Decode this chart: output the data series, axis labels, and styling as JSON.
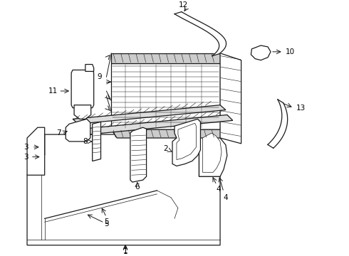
{
  "background_color": "#ffffff",
  "line_color": "#1a1a1a",
  "label_color": "#000000",
  "figsize": [
    4.9,
    3.6
  ],
  "dpi": 100,
  "label_fontsize": 7.5,
  "lw_main": 0.9,
  "lw_thin": 0.5,
  "lw_thick": 1.2
}
